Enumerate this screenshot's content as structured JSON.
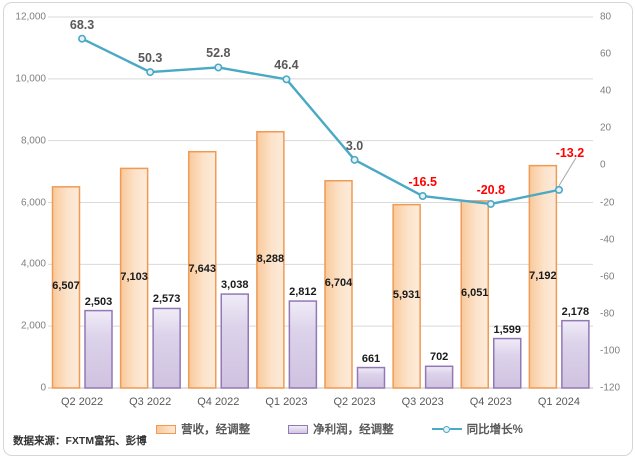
{
  "chart_data": {
    "type": "combo",
    "categories": [
      "Q2 2022",
      "Q3 2022",
      "Q4 2022",
      "Q1 2023",
      "Q2 2023",
      "Q3 2023",
      "Q4 2023",
      "Q1 2024"
    ],
    "series": [
      {
        "name": "营收，经调整",
        "type": "bar",
        "axis": "left",
        "values": [
          6507,
          7103,
          7643,
          8288,
          6704,
          5931,
          6051,
          7192
        ]
      },
      {
        "name": "净利润，经调整",
        "type": "bar",
        "axis": "left",
        "values": [
          2503,
          2573,
          3038,
          2812,
          661,
          702,
          1599,
          2178
        ]
      },
      {
        "name": "同比增长%",
        "type": "line",
        "axis": "right",
        "values": [
          68.3,
          50.3,
          52.8,
          46.4,
          3.0,
          -16.5,
          -20.8,
          -13.2
        ]
      }
    ],
    "left_axis": {
      "min": 0,
      "max": 12000,
      "step": 2000
    },
    "right_axis": {
      "min": -120,
      "max": 80,
      "step": 20
    },
    "grid": true,
    "legend_position": "bottom"
  },
  "legend": {
    "revenue_label": "营收，经调整",
    "profit_label": "净利润，经调整",
    "growth_label": "同比增长%"
  },
  "source_note": "数据来源：FXTM富拓、彭博",
  "colors": {
    "revenue_border": "#f09a54",
    "revenue_fill_dark": "#f9c99b",
    "revenue_fill_light": "#fdebdb",
    "profit_border": "#9278b5",
    "profit_fill_dark": "#cfc2e0",
    "profit_fill_light": "#f0ecf7",
    "growth_line": "#4aa9c4",
    "marker_fill": "#e6f2f7",
    "gridline": "#d9d9d9",
    "axis_line": "#bfbfbf",
    "positive_label": "#595959",
    "negative_label": "#ff0000",
    "leader_line": "#a6a6a6"
  }
}
